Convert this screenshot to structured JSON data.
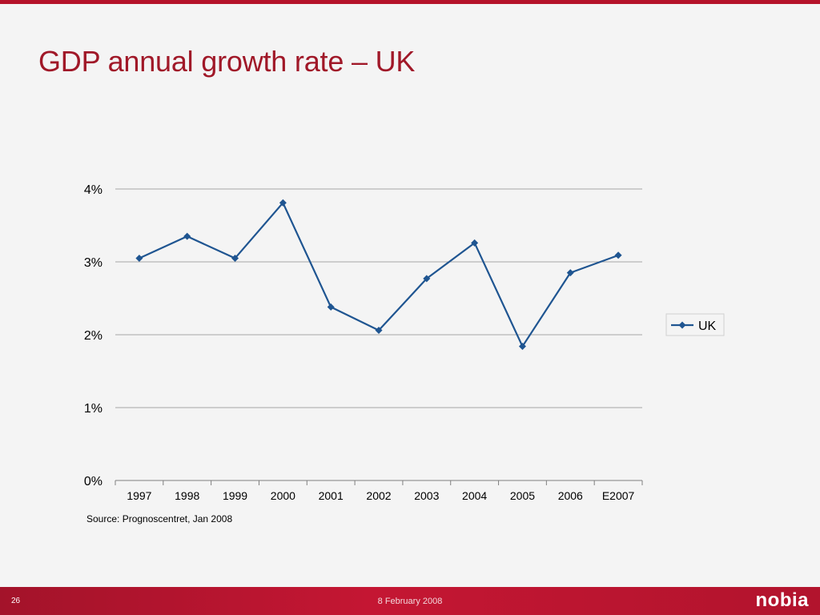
{
  "slide": {
    "title": "GDP annual growth rate – UK",
    "source": "Source: Prognoscentret, Jan 2008",
    "page_number": "26",
    "date": "8 February 2008",
    "brand": "nobia"
  },
  "colors": {
    "accent": "#a01828",
    "series": "#1f5591",
    "grid": "#a6a6a6",
    "footer": "#c41633"
  },
  "chart_data": {
    "type": "line",
    "categories": [
      "1997",
      "1998",
      "1999",
      "2000",
      "2001",
      "2002",
      "2003",
      "2004",
      "2005",
      "2006",
      "E2007"
    ],
    "series": [
      {
        "name": "UK",
        "marker": "diamond",
        "values": [
          3.05,
          3.35,
          3.05,
          3.81,
          2.38,
          2.06,
          2.77,
          3.26,
          1.84,
          2.85,
          3.09
        ]
      }
    ],
    "yticks": [
      "0%",
      "1%",
      "2%",
      "3%",
      "4%"
    ],
    "ylim": [
      0,
      4
    ],
    "grid": true,
    "legend": "right"
  }
}
